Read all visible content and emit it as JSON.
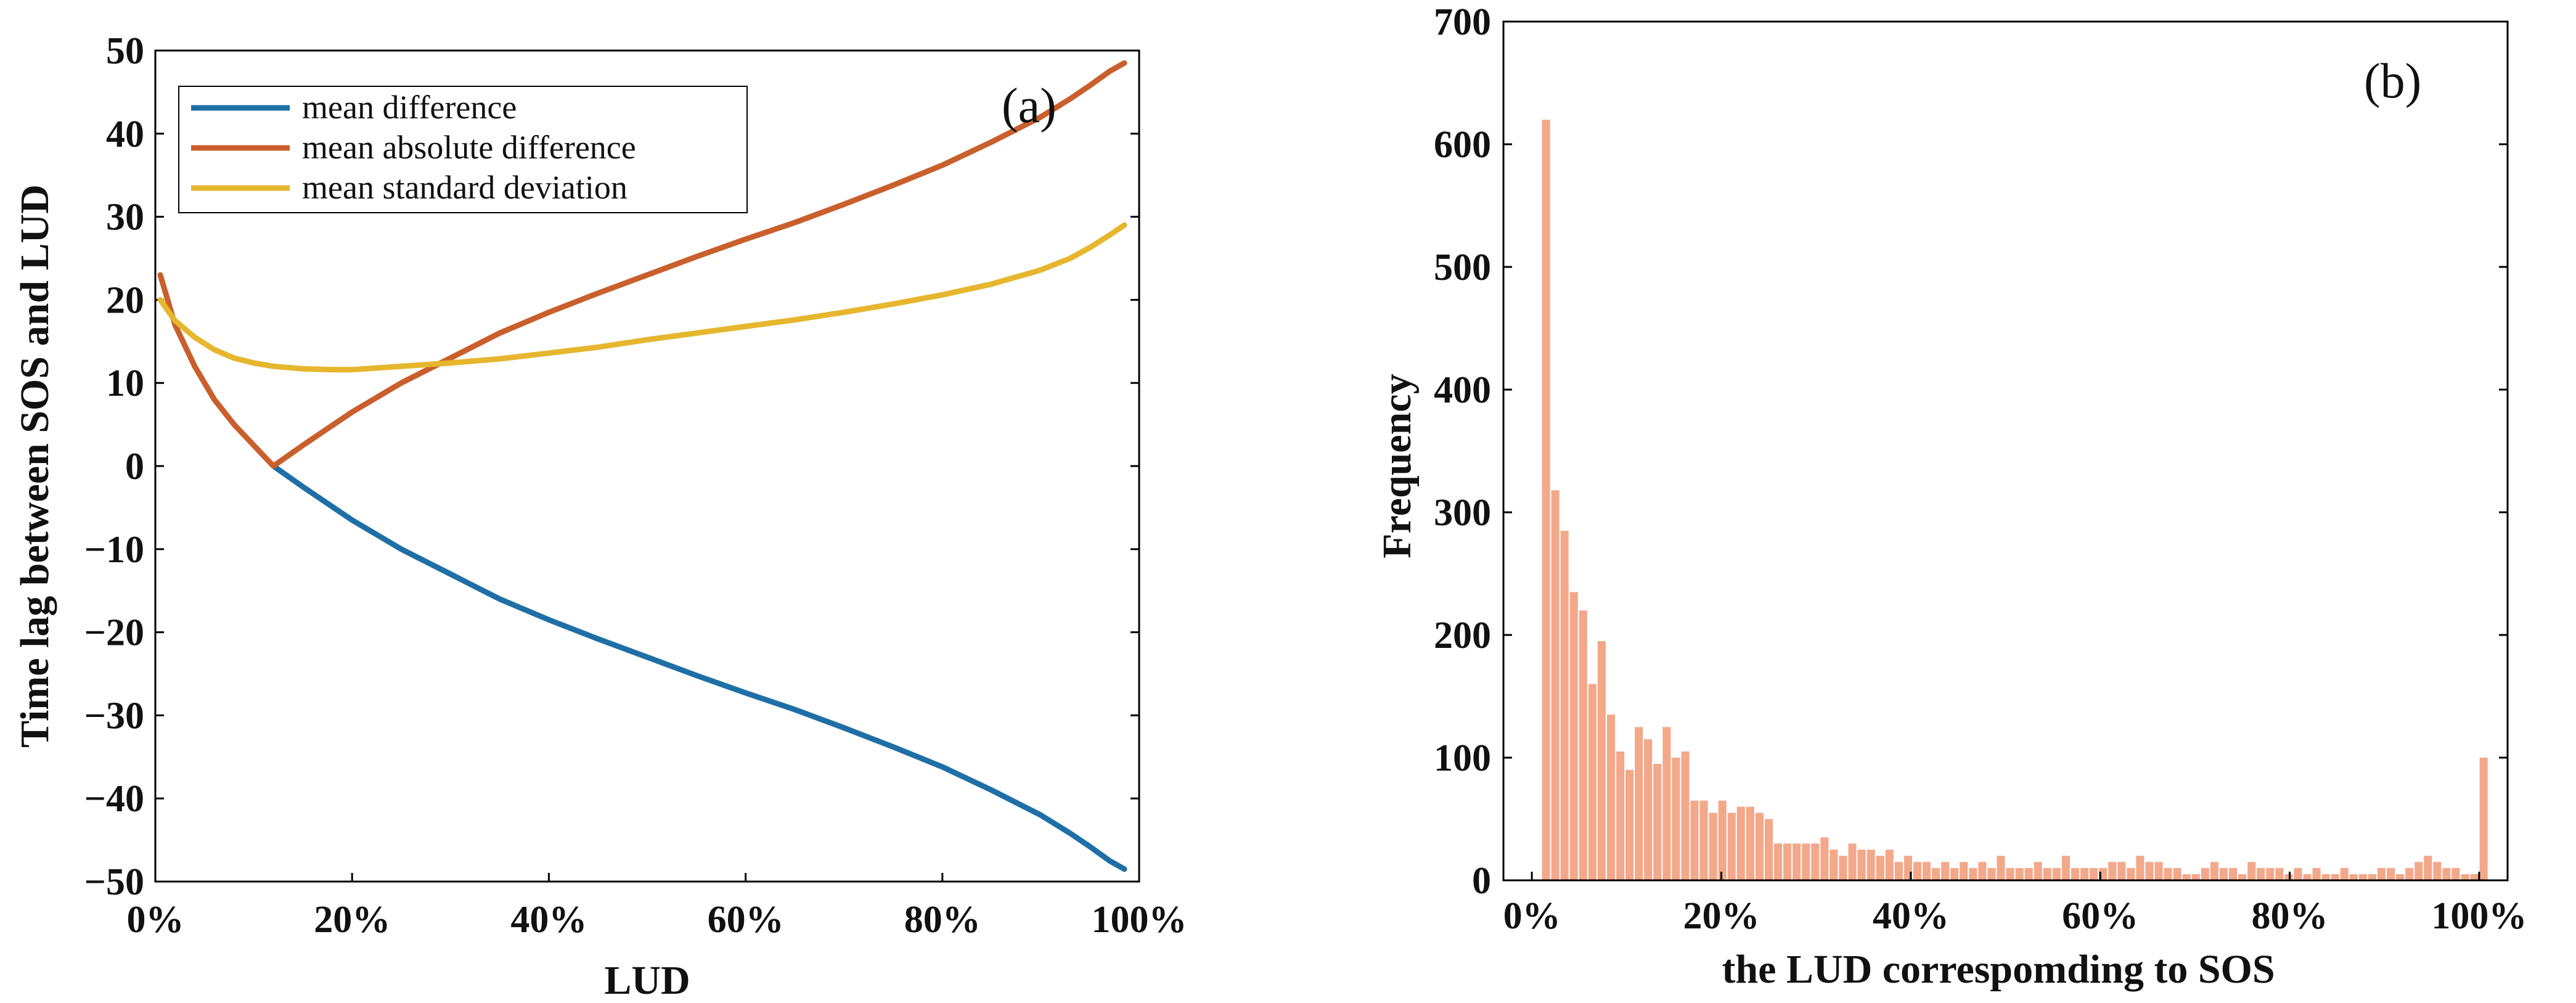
{
  "chart_data": [
    {
      "type": "line",
      "panel_label": "(a)",
      "xlabel": "LUD",
      "ylabel": "Time lag between SOS and LUD",
      "xlim": [
        0,
        100
      ],
      "ylim": [
        -50,
        50
      ],
      "x_ticks": [
        {
          "value": 0,
          "label": "0%"
        },
        {
          "value": 20,
          "label": "20%"
        },
        {
          "value": 40,
          "label": "40%"
        },
        {
          "value": 60,
          "label": "60%"
        },
        {
          "value": 80,
          "label": "80%"
        },
        {
          "value": 100,
          "label": "100%"
        }
      ],
      "y_ticks": [
        {
          "value": 50,
          "label": "50"
        },
        {
          "value": 40,
          "label": "40"
        },
        {
          "value": 30,
          "label": "30"
        },
        {
          "value": 20,
          "label": "20"
        },
        {
          "value": 10,
          "label": "10"
        },
        {
          "value": 0,
          "label": "0"
        },
        {
          "value": -10,
          "label": "−10"
        },
        {
          "value": -20,
          "label": "−20"
        },
        {
          "value": -30,
          "label": "−30"
        },
        {
          "value": -40,
          "label": "−40"
        },
        {
          "value": -50,
          "label": "−50"
        }
      ],
      "legend_position": "top-left",
      "series": [
        {
          "name": "mean difference",
          "color": "#1f6fa6",
          "x": [
            12,
            15,
            20,
            25,
            30,
            35,
            40,
            45,
            50,
            55,
            60,
            65,
            70,
            75,
            80,
            85,
            90,
            93,
            95,
            97,
            98.5
          ],
          "y": [
            0,
            -2.5,
            -6.5,
            -10,
            -13,
            -16,
            -18.5,
            -20.8,
            -23,
            -25.2,
            -27.3,
            -29.3,
            -31.5,
            -33.8,
            -36.2,
            -39,
            -42,
            -44.2,
            -45.8,
            -47.5,
            -48.5
          ]
        },
        {
          "name": "mean absolute difference",
          "color": "#c95f2c",
          "x": [
            0.5,
            2,
            4,
            6,
            8,
            10,
            12,
            15,
            20,
            25,
            30,
            35,
            40,
            45,
            50,
            55,
            60,
            65,
            70,
            75,
            80,
            85,
            90,
            93,
            95,
            97,
            98.5
          ],
          "y": [
            23,
            17,
            12,
            8,
            5,
            2.5,
            0,
            2.5,
            6.5,
            10,
            13,
            16,
            18.5,
            20.8,
            23,
            25.2,
            27.3,
            29.3,
            31.5,
            33.8,
            36.2,
            39,
            42,
            44.2,
            45.8,
            47.5,
            48.5
          ]
        },
        {
          "name": "mean standard deviation",
          "color": "#e6b62e",
          "x": [
            0.5,
            2,
            4,
            6,
            8,
            10,
            12,
            15,
            18,
            20,
            25,
            30,
            35,
            40,
            45,
            50,
            55,
            60,
            65,
            70,
            75,
            80,
            85,
            90,
            93,
            95,
            97,
            98.5
          ],
          "y": [
            20,
            17.5,
            15.5,
            14,
            13,
            12.4,
            12,
            11.7,
            11.6,
            11.6,
            12,
            12.4,
            12.9,
            13.6,
            14.3,
            15.2,
            16,
            16.8,
            17.6,
            18.5,
            19.5,
            20.6,
            21.9,
            23.6,
            25,
            26.3,
            27.8,
            29
          ]
        }
      ]
    },
    {
      "type": "bar",
      "panel_label": "(b)",
      "xlabel": "the LUD correspomding to SOS",
      "ylabel": "Frequency",
      "xlim": [
        -3,
        103
      ],
      "ylim": [
        0,
        700
      ],
      "x_ticks": [
        {
          "value": 0,
          "label": "0%"
        },
        {
          "value": 20,
          "label": "20%"
        },
        {
          "value": 40,
          "label": "40%"
        },
        {
          "value": 60,
          "label": "60%"
        },
        {
          "value": 80,
          "label": "80%"
        },
        {
          "value": 100,
          "label": "100%"
        }
      ],
      "y_ticks": [
        {
          "value": 0,
          "label": "0"
        },
        {
          "value": 100,
          "label": "100"
        },
        {
          "value": 200,
          "label": "200"
        },
        {
          "value": 300,
          "label": "300"
        },
        {
          "value": 400,
          "label": "400"
        },
        {
          "value": 500,
          "label": "500"
        },
        {
          "value": 600,
          "label": "600"
        },
        {
          "value": 700,
          "label": "700"
        }
      ],
      "bar_color": "#f3a88a",
      "bin_start": 1,
      "bin_width": 0.98,
      "values": [
        620,
        318,
        285,
        235,
        220,
        160,
        195,
        135,
        105,
        90,
        125,
        115,
        95,
        125,
        100,
        105,
        65,
        65,
        55,
        65,
        55,
        60,
        60,
        55,
        50,
        30,
        30,
        30,
        30,
        30,
        35,
        25,
        20,
        30,
        25,
        25,
        20,
        25,
        15,
        20,
        15,
        15,
        10,
        15,
        10,
        15,
        10,
        15,
        10,
        20,
        10,
        10,
        10,
        15,
        10,
        10,
        20,
        10,
        10,
        10,
        10,
        15,
        15,
        10,
        20,
        15,
        15,
        10,
        10,
        5,
        5,
        10,
        15,
        10,
        10,
        5,
        15,
        10,
        10,
        10,
        5,
        10,
        5,
        10,
        5,
        5,
        10,
        5,
        5,
        5,
        10,
        10,
        5,
        10,
        15,
        20,
        15,
        10,
        10,
        5,
        5,
        100
      ]
    }
  ]
}
